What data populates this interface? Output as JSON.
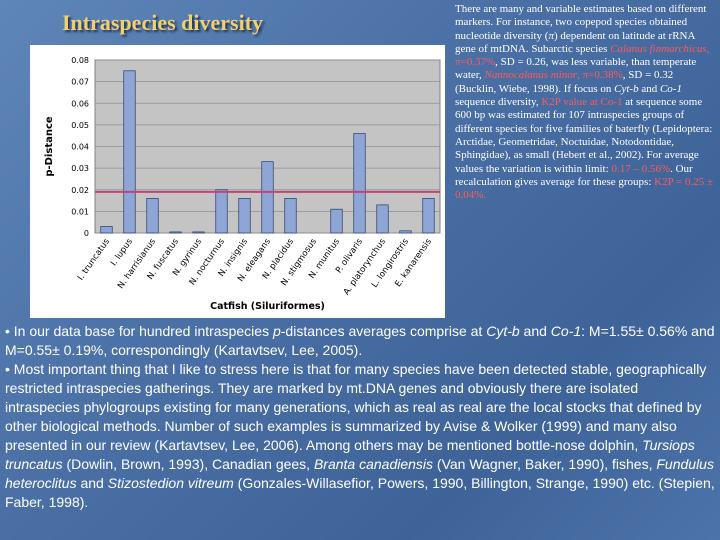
{
  "title": "Intraspecies diversity",
  "chart_data": {
    "type": "bar",
    "y_label": "p-Distance",
    "x_label": "Catfish (Siluriformes)",
    "categories": [
      "I. truncatus",
      "I. lupus",
      "N. harrisianus",
      "N. fuscatus",
      "N. gyrinus",
      "N. nocturnus",
      "N. insignis",
      "N. eleagans",
      "N. placidus",
      "N. stigmosus",
      "N. munitus",
      "P. olivaris",
      "A. platorynchus",
      "L. longirostris",
      "E. kanarensis"
    ],
    "values": [
      0.003,
      0.075,
      0.016,
      0.0005,
      0.0005,
      0.02,
      0.016,
      0.033,
      0.016,
      0,
      0.011,
      0.046,
      0.013,
      0.001,
      0.016
    ],
    "color": "#8ea6d6",
    "ylim": [
      0,
      0.08
    ],
    "yticks": [
      0,
      0.01,
      0.02,
      0.03,
      0.04,
      0.05,
      0.06,
      0.07,
      0.08
    ],
    "grid": true,
    "reference_line": {
      "value": 0.019,
      "color": "#c8407a"
    }
  },
  "right_text": [
    {
      "text": "There are many and variable estimates based on different markers. For instance, two copepod species obtained nucleotide diversity ("
    },
    {
      "text": "π",
      "italic": true
    },
    {
      "text": ") dependent on latitude at rRNA gene of mtDNA. Subarctic species "
    },
    {
      "text": "Calanus finmarchicus",
      "italic": true,
      "red": true
    },
    {
      "text": ", π=0.37%",
      "red": true
    },
    {
      "text": ", SD = 0.26, was less variable, than temperate water, "
    },
    {
      "text": "Nannocalanus minor",
      "italic": true,
      "red": true
    },
    {
      "text": ", π=0.38%",
      "red": true
    },
    {
      "text": ", SD = 0.32 (Bucklin, Wiebe, 1998). If focus on "
    },
    {
      "text": "Cyt-b",
      "italic": true
    },
    {
      "text": " and "
    },
    {
      "text": "Co-1",
      "italic": true
    },
    {
      "text": " sequence diversity, "
    },
    {
      "text": "K2P value at Co-1",
      "red": true
    },
    {
      "text": " at sequence some 600 bp was estimated for 107 intraspecies groups of different species for five families of  baterfly (Lepidoptera: Arctidae, Geometridae, Noctuidae, Notodontidae, Sphingidae), as small (Hebert et al., 2002). For average values the variation is within limit: "
    },
    {
      "text": "0.17 – 0.56%",
      "red": true
    },
    {
      "text": ". Our recalculation gives average for these groups: "
    },
    {
      "text": "K2P = 0.25 ± 0.04%.",
      "red": true
    }
  ],
  "body_text": [
    [
      {
        "text": "• In our data base for hundred intraspecies "
      },
      {
        "text": "p",
        "italic": true
      },
      {
        "text": "-distances averages comprise at "
      },
      {
        "text": "Cyt-b",
        "italic": true
      },
      {
        "text": " and "
      },
      {
        "text": "Co-1",
        "italic": true
      },
      {
        "text": ": M=1.55± 0.56% and M=0.55± 0.19%, correspondingly (Kartavtsev, Lee, 2005)."
      }
    ],
    [
      {
        "text": "• Most important thing that I like to stress here is that for many species have been detected stable, geographically restricted intraspecies gatherings. They are marked by mt.DNA genes and obviously there are isolated intraspecies phylogroups existing for many generations, which as real as real are the local stocks that defined by other biological methods. Number of such examples is summarized by Avise & Wolker (1999) and many also presented in our review (Kartavtsev, Lee, 2006). Among others may be mentioned bottle-nose dolphin, "
      },
      {
        "text": "Tursiops truncatus",
        "italic": true
      },
      {
        "text": " (Dowlin, Brown, 1993), Canadian gees, "
      },
      {
        "text": "Branta canadiensis",
        "italic": true
      },
      {
        "text": " (Van Wagner, Baker, 1990), fishes, "
      },
      {
        "text": "Fundulus heteroclitus",
        "italic": true
      },
      {
        "text": " and "
      },
      {
        "text": "Stizostedion vitreum",
        "italic": true
      },
      {
        "text": " (Gonzales-Willasefior, Powers, 1990, Billington, Strange, 1990) etc. (Stepien, Faber, 1998)."
      }
    ]
  ]
}
